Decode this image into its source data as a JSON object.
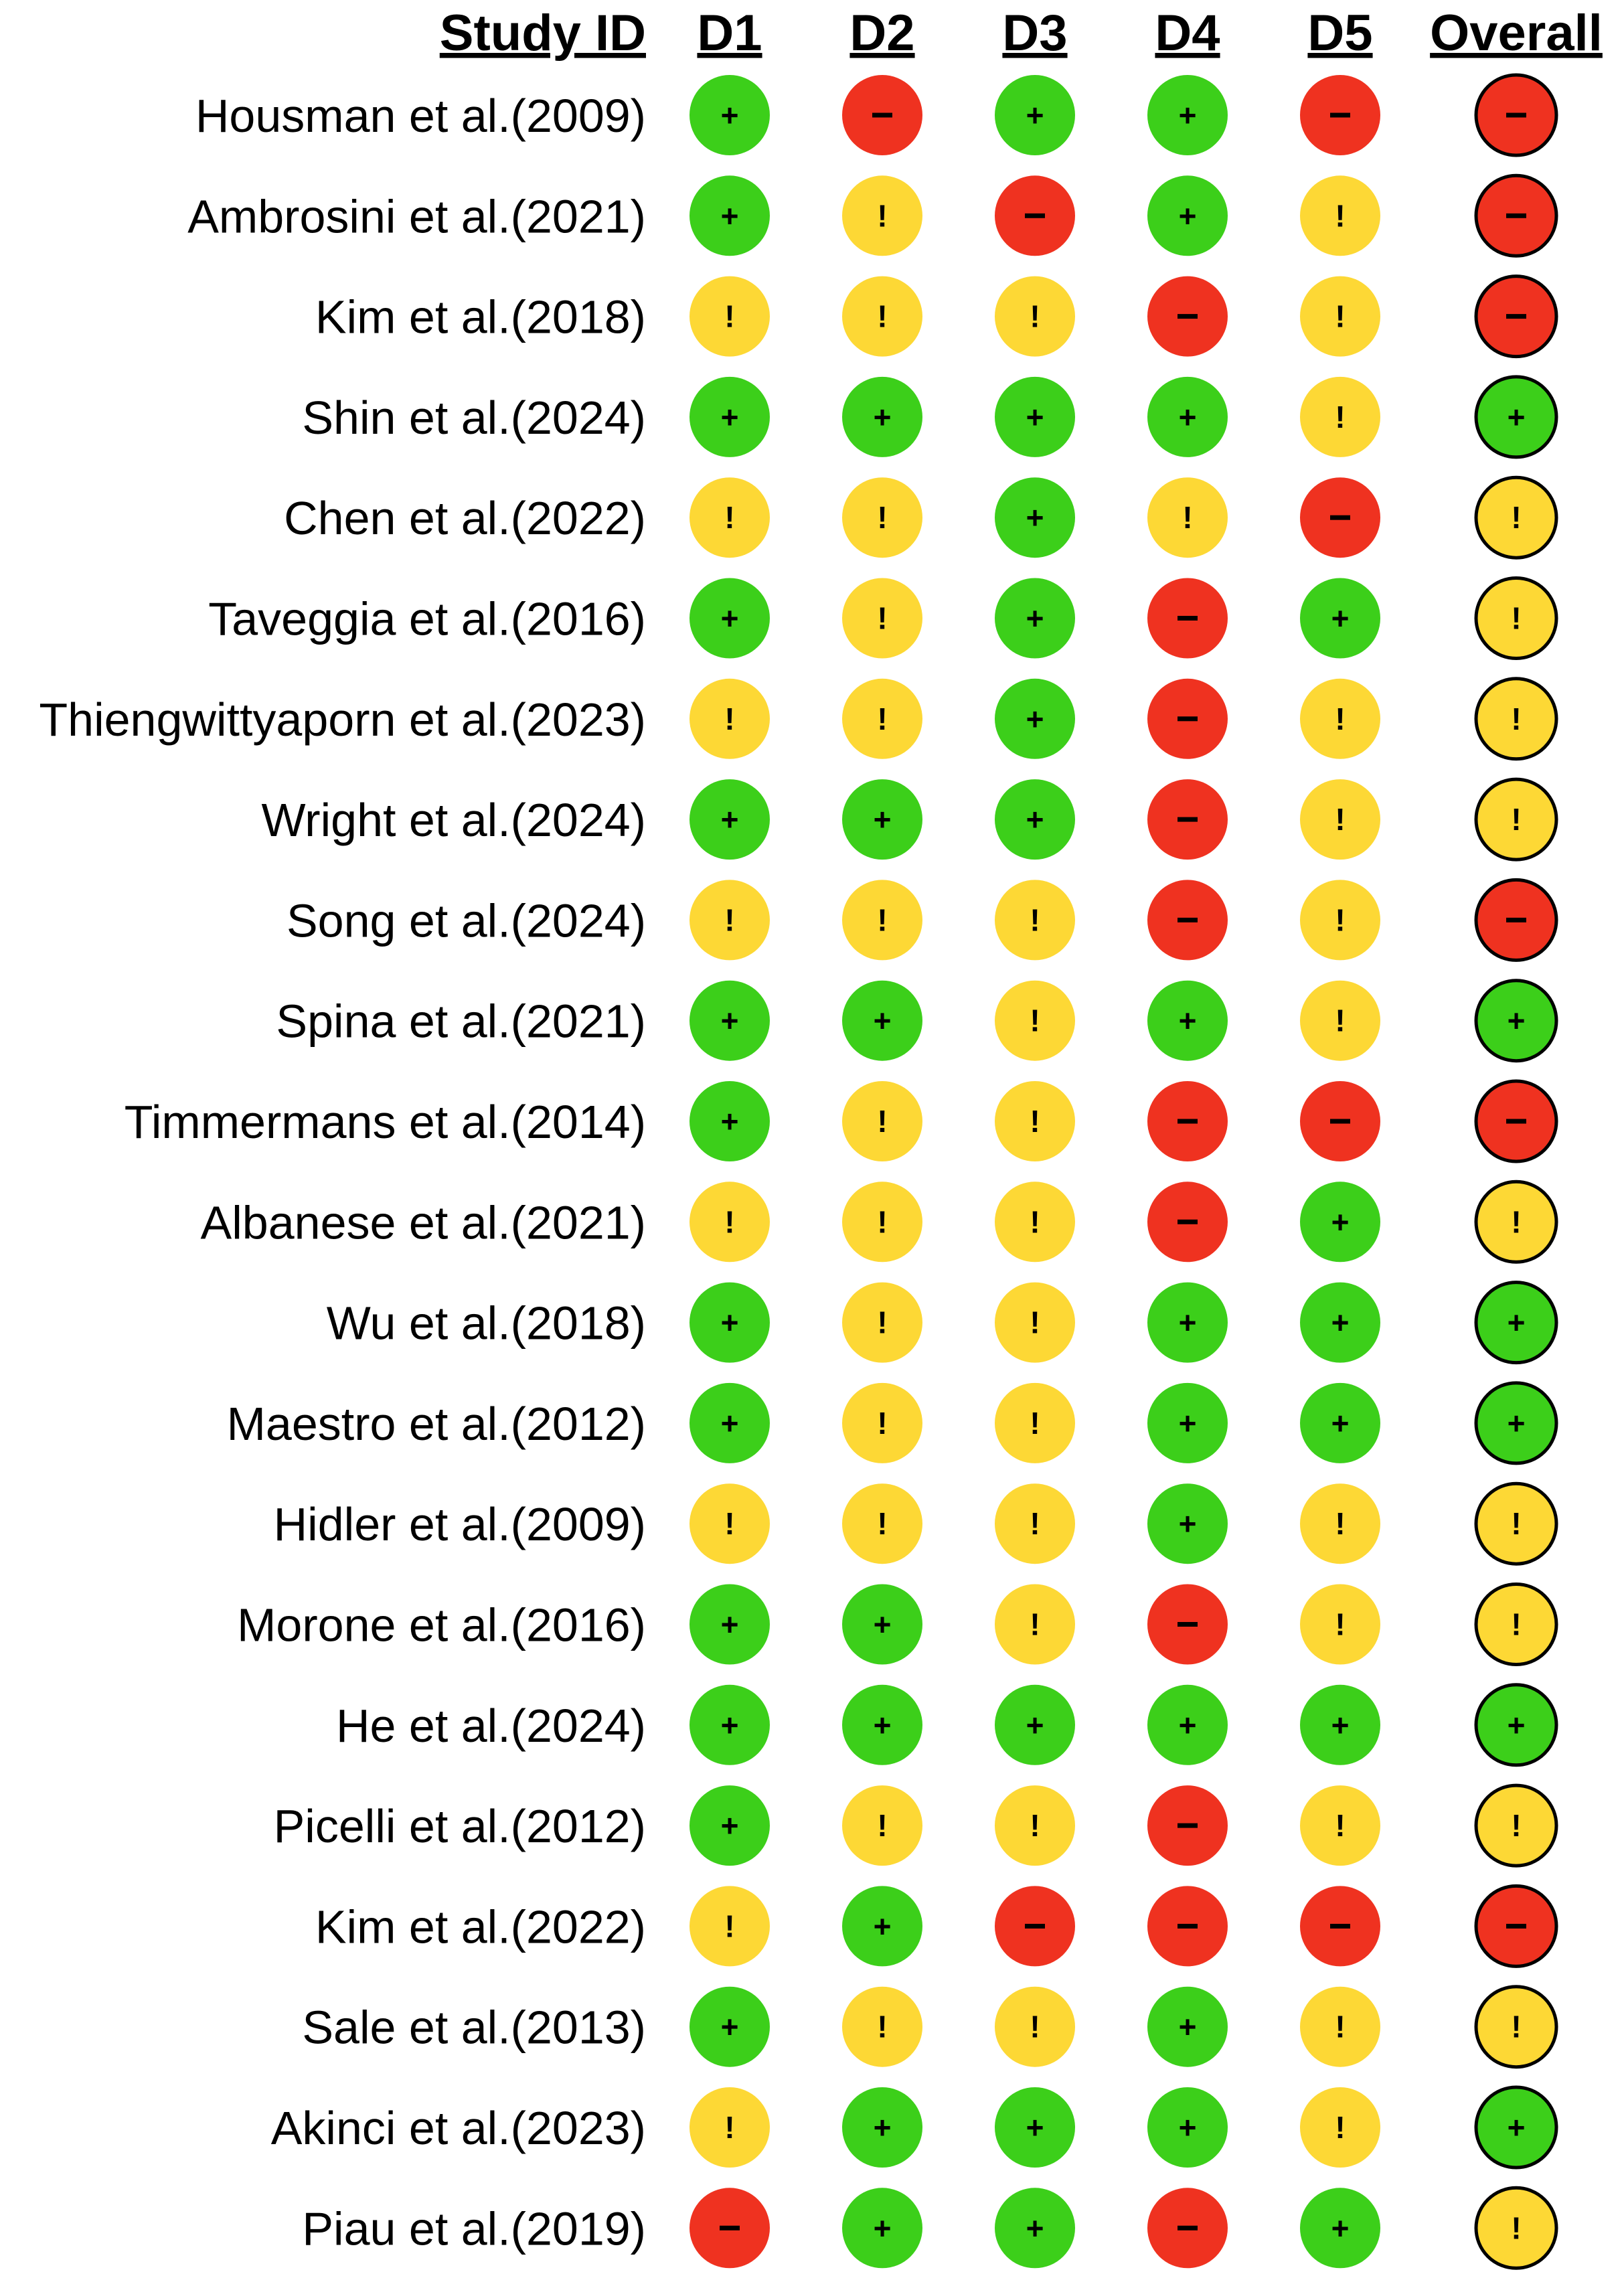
{
  "columns": [
    "D1",
    "D2",
    "D3",
    "D4",
    "D5",
    "Overall"
  ],
  "header": {
    "study_id": "Study ID"
  },
  "legend_map": {
    "low": {
      "symbol": "+",
      "color": "#3ccf1a"
    },
    "some": {
      "symbol": "!",
      "color": "#fdd835"
    },
    "high": {
      "symbol": "−",
      "color": "#ef3220"
    }
  },
  "studies": [
    {
      "name": "Housman et al.(2009)",
      "ratings": [
        "low",
        "high",
        "low",
        "low",
        "high",
        "high"
      ]
    },
    {
      "name": "Ambrosini et al.(2021)",
      "ratings": [
        "low",
        "some",
        "high",
        "low",
        "some",
        "high"
      ]
    },
    {
      "name": "Kim et al.(2018)",
      "ratings": [
        "some",
        "some",
        "some",
        "high",
        "some",
        "high"
      ]
    },
    {
      "name": "Shin et al.(2024)",
      "ratings": [
        "low",
        "low",
        "low",
        "low",
        "some",
        "low"
      ]
    },
    {
      "name": "Chen et al.(2022)",
      "ratings": [
        "some",
        "some",
        "low",
        "some",
        "high",
        "some"
      ]
    },
    {
      "name": "Taveggia et al.(2016)",
      "ratings": [
        "low",
        "some",
        "low",
        "high",
        "low",
        "some"
      ]
    },
    {
      "name": "Thiengwittyaporn et al.(2023)",
      "ratings": [
        "some",
        "some",
        "low",
        "high",
        "some",
        "some"
      ]
    },
    {
      "name": "Wright et al.(2024)",
      "ratings": [
        "low",
        "low",
        "low",
        "high",
        "some",
        "some"
      ]
    },
    {
      "name": "Song et al.(2024)",
      "ratings": [
        "some",
        "some",
        "some",
        "high",
        "some",
        "high"
      ]
    },
    {
      "name": "Spina et al.(2021)",
      "ratings": [
        "low",
        "low",
        "some",
        "low",
        "some",
        "low"
      ]
    },
    {
      "name": "Timmermans et al.(2014)",
      "ratings": [
        "low",
        "some",
        "some",
        "high",
        "high",
        "high"
      ]
    },
    {
      "name": "Albanese et al.(2021)",
      "ratings": [
        "some",
        "some",
        "some",
        "high",
        "low",
        "some"
      ]
    },
    {
      "name": "Wu et al.(2018)",
      "ratings": [
        "low",
        "some",
        "some",
        "low",
        "low",
        "low"
      ]
    },
    {
      "name": "Maestro et al.(2012)",
      "ratings": [
        "low",
        "some",
        "some",
        "low",
        "low",
        "low"
      ]
    },
    {
      "name": "Hidler et al.(2009)",
      "ratings": [
        "some",
        "some",
        "some",
        "low",
        "some",
        "some"
      ]
    },
    {
      "name": "Morone et al.(2016)",
      "ratings": [
        "low",
        "low",
        "some",
        "high",
        "some",
        "some"
      ]
    },
    {
      "name": "He et al.(2024)",
      "ratings": [
        "low",
        "low",
        "low",
        "low",
        "low",
        "low"
      ]
    },
    {
      "name": "Picelli et al.(2012)",
      "ratings": [
        "low",
        "some",
        "some",
        "high",
        "some",
        "some"
      ]
    },
    {
      "name": "Kim et al.(2022)",
      "ratings": [
        "some",
        "low",
        "high",
        "high",
        "high",
        "high"
      ]
    },
    {
      "name": "Sale et al.(2013)",
      "ratings": [
        "low",
        "some",
        "some",
        "low",
        "some",
        "some"
      ]
    },
    {
      "name": "Akinci et al.(2023)",
      "ratings": [
        "some",
        "low",
        "low",
        "low",
        "some",
        "low"
      ]
    },
    {
      "name": "Piau et al.(2019)",
      "ratings": [
        "high",
        "low",
        "low",
        "high",
        "low",
        "some"
      ]
    }
  ]
}
